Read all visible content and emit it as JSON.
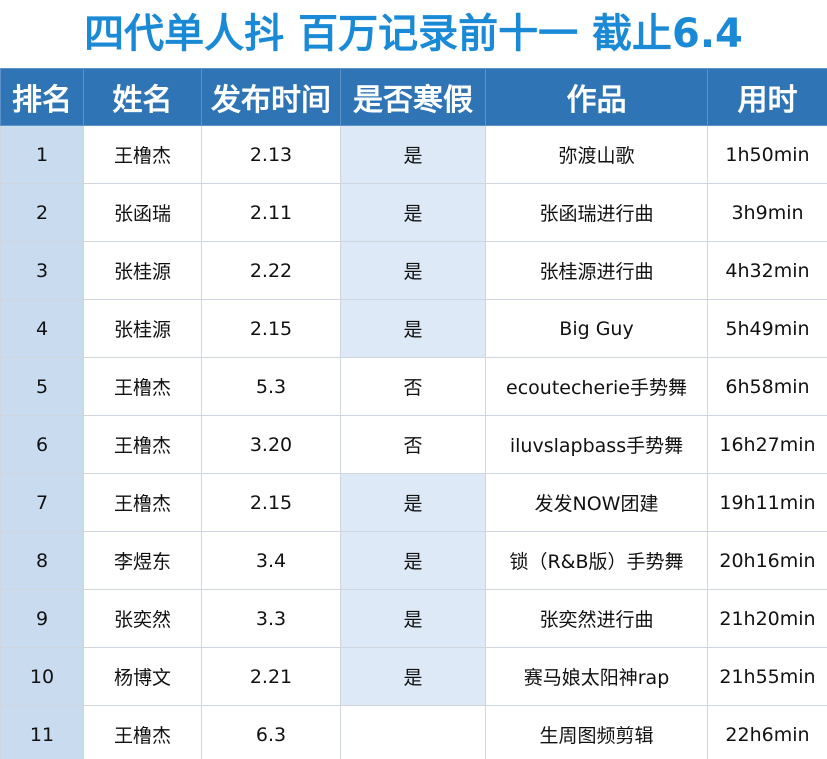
{
  "header": {
    "title": "四代单人抖 百万记录前十一 截止6.4"
  },
  "table": {
    "columns": [
      "排名",
      "姓名",
      "发布时间",
      "是否寒假",
      "作品",
      "用时"
    ],
    "rows": [
      [
        "1",
        "王橹杰",
        "2.13",
        "是",
        "弥渡山歌",
        "1h50min"
      ],
      [
        "2",
        "张函瑞",
        "2.11",
        "是",
        "张函瑞进行曲",
        "3h9min"
      ],
      [
        "3",
        "张桂源",
        "2.22",
        "是",
        "张桂源进行曲",
        "4h32min"
      ],
      [
        "4",
        "张桂源",
        "2.15",
        "是",
        "Big Guy",
        "5h49min"
      ],
      [
        "5",
        "王橹杰",
        "5.3",
        "否",
        "ecoutecherie手势舞",
        "6h58min"
      ],
      [
        "6",
        "王橹杰",
        "3.20",
        "否",
        "iluvslapbass手势舞",
        "16h27min"
      ],
      [
        "7",
        "王橹杰",
        "2.15",
        "是",
        "发发NOW团建",
        "19h11min"
      ],
      [
        "8",
        "李煜东",
        "3.4",
        "是",
        "锁（R&B版）手势舞",
        "20h16min"
      ],
      [
        "9",
        "张奕然",
        "3.3",
        "是",
        "张奕然进行曲",
        "21h20min"
      ],
      [
        "10",
        "杨博文",
        "2.21",
        "是",
        "赛马娘太阳神rap",
        "21h55min"
      ],
      [
        "11",
        "王橹杰",
        "6.3",
        null,
        "生周图频剪辑",
        "22h6min"
      ]
    ]
  }
}
